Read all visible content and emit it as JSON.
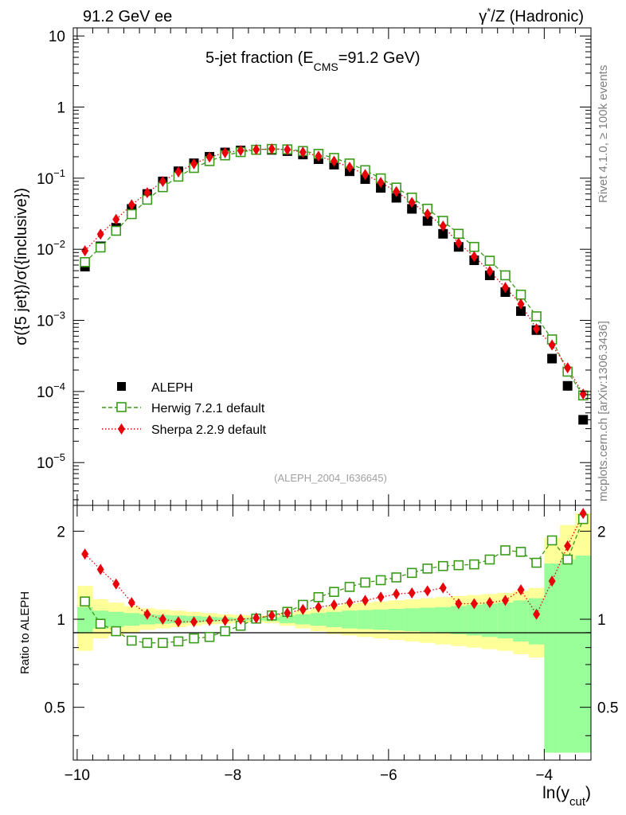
{
  "header": {
    "left": "91.2 GeV ee",
    "right_gamma": "γ",
    "right_star": "*",
    "right_rest": "/Z (Hadronic)"
  },
  "side": {
    "rivet": "Rivet 4.1.0, ≥ 100k events",
    "mcplots": "mcplots.cern.ch [arXiv:1306.3436]"
  },
  "plot_title": {
    "main": "5-jet fraction (E",
    "sub": "CMS",
    "rest": "=91.2 GeV)"
  },
  "ylabel_main": "σ({5 jet})/σ({inclusive})",
  "ylabel_ratio": "Ratio to ALEPH",
  "xlabel": {
    "main": "ln(y",
    "sub": "cut",
    "close": ")"
  },
  "analysis_tag": "(ALEPH_2004_I636645)",
  "legend": {
    "aleph": "ALEPH",
    "herwig": "Herwig 7.2.1 default",
    "sherpa": "Sherpa 2.2.9 default"
  },
  "colors": {
    "aleph": "#000000",
    "herwig": "#3a9a1a",
    "sherpa": "#e8000b",
    "band_inner": "#99ff99",
    "band_outer": "#ffff99"
  },
  "main_yticks": [
    {
      "value": 10,
      "base": "10",
      "exp": ""
    },
    {
      "value": 1,
      "base": "1",
      "exp": ""
    },
    {
      "value": 0.1,
      "base": "10",
      "exp": "−1"
    },
    {
      "value": 0.01,
      "base": "10",
      "exp": "−2"
    },
    {
      "value": 0.001,
      "base": "10",
      "exp": "−3"
    },
    {
      "value": 0.0001,
      "base": "10",
      "exp": "−4"
    },
    {
      "value": 1e-05,
      "base": "10",
      "exp": "−5"
    }
  ],
  "ratio_yticks": [
    {
      "value": 2,
      "label": "2"
    },
    {
      "value": 1,
      "label": "1"
    },
    {
      "value": 0.5,
      "label": "0.5"
    }
  ],
  "xticks": [
    {
      "value": -10,
      "label": "−10"
    },
    {
      "value": -8,
      "label": "−8"
    },
    {
      "value": -6,
      "label": "−6"
    },
    {
      "value": -4,
      "label": "−4"
    }
  ],
  "chart_data": {
    "type": "scatter",
    "title": "5-jet fraction (E_CMS=91.2 GeV)",
    "xlabel": "ln(y_cut)",
    "ylabel": "σ({5 jet})/σ({inclusive})",
    "ratio_ylabel": "Ratio to ALEPH",
    "xlim": [
      -10.05,
      -3.4
    ],
    "ylim": [
      2.5e-06,
      13
    ],
    "ylog": true,
    "ratio_ylim": [
      0.33,
      2.45
    ],
    "ratio_ylog": true,
    "x": [
      -9.9,
      -9.7,
      -9.5,
      -9.3,
      -9.1,
      -8.9,
      -8.7,
      -8.5,
      -8.3,
      -8.1,
      -7.9,
      -7.7,
      -7.5,
      -7.3,
      -7.1,
      -6.9,
      -6.7,
      -6.5,
      -6.3,
      -6.1,
      -5.9,
      -5.7,
      -5.5,
      -5.3,
      -5.1,
      -4.9,
      -4.7,
      -4.5,
      -4.3,
      -4.1,
      -3.9,
      -3.7,
      -3.5
    ],
    "series": [
      {
        "name": "ALEPH",
        "marker": "filled-square",
        "values": [
          0.0057,
          0.011,
          0.02,
          0.037,
          0.06,
          0.09,
          0.125,
          0.162,
          0.2,
          0.23,
          0.245,
          0.25,
          0.25,
          0.24,
          0.215,
          0.185,
          0.155,
          0.125,
          0.097,
          0.073,
          0.053,
          0.037,
          0.025,
          0.0165,
          0.0108,
          0.007,
          0.0043,
          0.0025,
          0.00135,
          0.00073,
          0.00029,
          0.00012,
          4e-05
        ]
      },
      {
        "name": "Herwig 7.2.1 default",
        "marker": "open-square",
        "line": "dashed",
        "values": [
          0.0066,
          0.0106,
          0.0182,
          0.0312,
          0.0498,
          0.0747,
          0.105,
          0.1393,
          0.174,
          0.2093,
          0.2328,
          0.251,
          0.2575,
          0.2542,
          0.2408,
          0.2198,
          0.1925,
          0.1608,
          0.1295,
          0.0993,
          0.0737,
          0.0533,
          0.0372,
          0.0251,
          0.0165,
          0.0108,
          0.0069,
          0.0043,
          0.0023,
          0.00114,
          0.00054,
          0.00019,
          8.8e-05
        ]
      },
      {
        "name": "Sherpa 2.2.9 default",
        "marker": "filled-diamond",
        "line": "dotted",
        "values": [
          0.0095,
          0.0163,
          0.0263,
          0.0422,
          0.0624,
          0.09,
          0.1225,
          0.1588,
          0.198,
          0.2277,
          0.245,
          0.2525,
          0.2575,
          0.252,
          0.2322,
          0.2035,
          0.1736,
          0.1425,
          0.1125,
          0.0869,
          0.0647,
          0.0455,
          0.0313,
          0.0212,
          0.0122,
          0.0079,
          0.0049,
          0.0029,
          0.0017,
          0.00076,
          0.00045,
          0.000215,
          9.2e-05
        ]
      }
    ],
    "ratio": {
      "herwig": [
        1.15,
        0.965,
        0.91,
        0.845,
        0.83,
        0.83,
        0.84,
        0.86,
        0.87,
        0.91,
        0.95,
        1.005,
        1.03,
        1.06,
        1.12,
        1.19,
        1.24,
        1.29,
        1.335,
        1.36,
        1.39,
        1.44,
        1.49,
        1.52,
        1.53,
        1.54,
        1.6,
        1.72,
        1.7,
        1.56,
        1.86,
        1.6,
        2.2
      ],
      "sherpa": [
        1.67,
        1.48,
        1.32,
        1.14,
        1.04,
        1.0,
        0.98,
        0.98,
        0.99,
        0.99,
        1.0,
        1.01,
        1.03,
        1.05,
        1.08,
        1.1,
        1.12,
        1.14,
        1.16,
        1.19,
        1.22,
        1.23,
        1.25,
        1.28,
        1.13,
        1.13,
        1.14,
        1.16,
        1.26,
        1.04,
        1.35,
        1.78,
        2.3
      ],
      "band_inner_lo": [
        0.9,
        0.93,
        0.94,
        0.95,
        0.96,
        0.965,
        0.97,
        0.975,
        0.98,
        0.985,
        0.99,
        0.99,
        0.985,
        0.97,
        0.96,
        0.95,
        0.94,
        0.93,
        0.925,
        0.92,
        0.915,
        0.91,
        0.905,
        0.9,
        0.89,
        0.88,
        0.87,
        0.86,
        0.84,
        0.82,
        0.35,
        0.35,
        0.35
      ],
      "band_inner_hi": [
        1.1,
        1.07,
        1.06,
        1.05,
        1.04,
        1.035,
        1.03,
        1.025,
        1.02,
        1.015,
        1.01,
        1.01,
        1.015,
        1.03,
        1.04,
        1.05,
        1.06,
        1.07,
        1.075,
        1.08,
        1.085,
        1.09,
        1.095,
        1.1,
        1.11,
        1.12,
        1.13,
        1.14,
        1.16,
        1.18,
        1.55,
        1.6,
        1.65
      ],
      "band_outer_lo": [
        0.78,
        0.86,
        0.88,
        0.9,
        0.92,
        0.93,
        0.94,
        0.95,
        0.96,
        0.965,
        0.97,
        0.975,
        0.97,
        0.95,
        0.93,
        0.91,
        0.89,
        0.88,
        0.87,
        0.86,
        0.85,
        0.84,
        0.83,
        0.82,
        0.81,
        0.8,
        0.79,
        0.78,
        0.76,
        0.74,
        0.35,
        0.35,
        0.35
      ],
      "band_outer_hi": [
        1.3,
        1.17,
        1.14,
        1.11,
        1.09,
        1.08,
        1.07,
        1.06,
        1.05,
        1.04,
        1.035,
        1.03,
        1.03,
        1.05,
        1.07,
        1.09,
        1.11,
        1.13,
        1.14,
        1.15,
        1.16,
        1.17,
        1.18,
        1.19,
        1.2,
        1.21,
        1.22,
        1.23,
        1.25,
        1.28,
        1.9,
        2.1,
        2.3
      ]
    }
  }
}
